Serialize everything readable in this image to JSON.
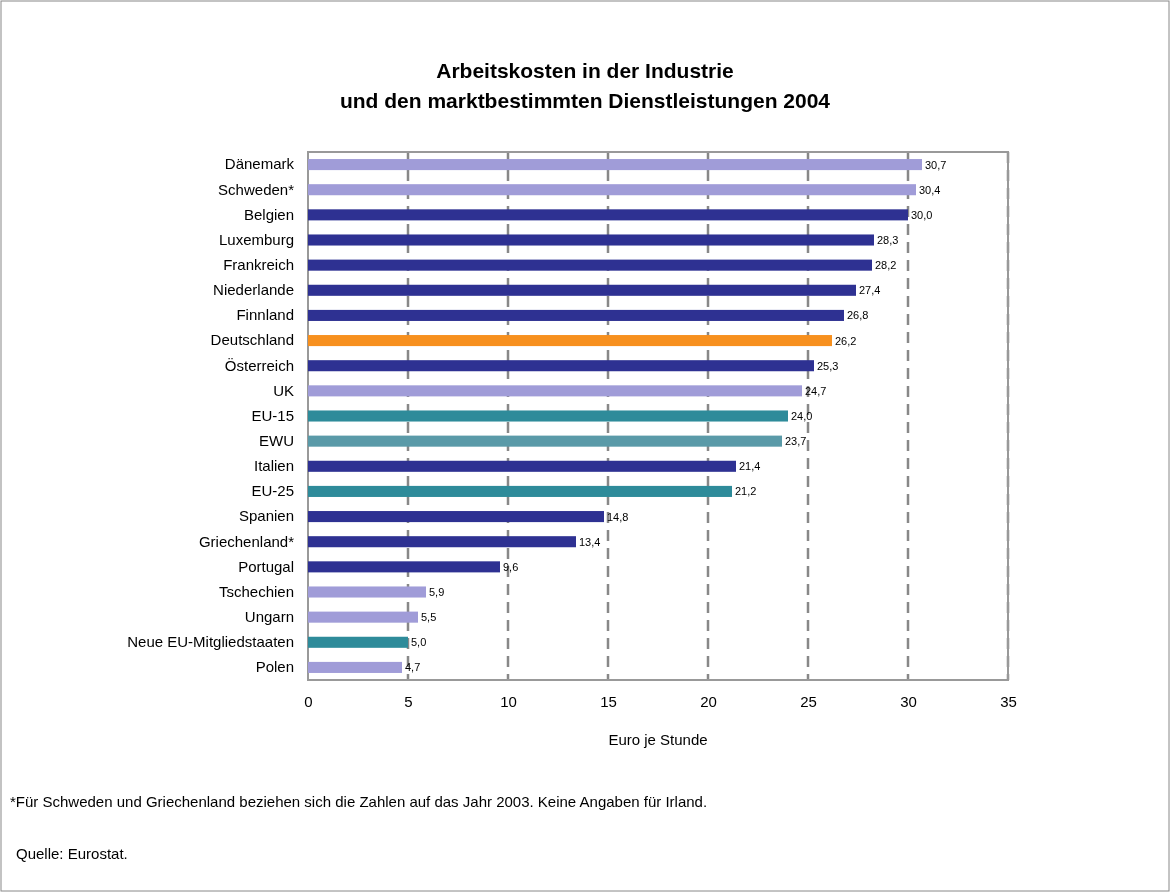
{
  "chart_data": {
    "type": "bar",
    "orientation": "horizontal",
    "title": "Arbeitskosten  in der Industrie\nund den marktbestimmten Dienstleistungen 2004",
    "xlabel": "Euro je Stunde",
    "categories": [
      "Dänemark",
      "Schweden*",
      "Belgien",
      "Luxemburg",
      "Frankreich",
      "Niederlande",
      "Finnland",
      "Deutschland",
      "Österreich",
      "UK",
      "EU-15",
      "EWU",
      "Italien",
      "EU-25",
      "Spanien",
      "Griechenland*",
      "Portugal",
      "Tschechien",
      "Ungarn",
      "Neue EU-Mitgliedstaaten",
      "Polen"
    ],
    "values": [
      30.7,
      30.4,
      30.0,
      28.3,
      28.2,
      27.4,
      26.8,
      26.2,
      25.3,
      24.7,
      24.0,
      23.7,
      21.4,
      21.2,
      14.8,
      13.4,
      9.6,
      5.9,
      5.5,
      5.0,
      4.7
    ],
    "value_labels": [
      "30,7",
      "30,4",
      "30,0",
      "28,3",
      "28,2",
      "27,4",
      "26,8",
      "26,2",
      "25,3",
      "24,7",
      "24,0",
      "23,7",
      "21,4",
      "21,2",
      "14,8",
      "13,4",
      "9,6",
      "5,9",
      "5,5",
      "5,0",
      "4,7"
    ],
    "colors": [
      "#a09cd8",
      "#a09cd8",
      "#2e3192",
      "#2e3192",
      "#2e3192",
      "#2e3192",
      "#2e3192",
      "#f7901e",
      "#2e3192",
      "#a09cd8",
      "#2e8b9a",
      "#5a9aa8",
      "#2e3192",
      "#2e8b9a",
      "#2e3192",
      "#2e3192",
      "#2e3192",
      "#a09cd8",
      "#a09cd8",
      "#2e8b9a",
      "#a09cd8"
    ],
    "xlim": [
      0,
      35
    ],
    "xticks": [
      0,
      5,
      10,
      15,
      20,
      25,
      30,
      35
    ],
    "grid": "x",
    "annotations": [
      "*Für Schweden und Griechenland beziehen sich die Zahlen auf das Jahr 2003. Keine Angaben für Irland.",
      "Quelle: Eurostat."
    ]
  }
}
